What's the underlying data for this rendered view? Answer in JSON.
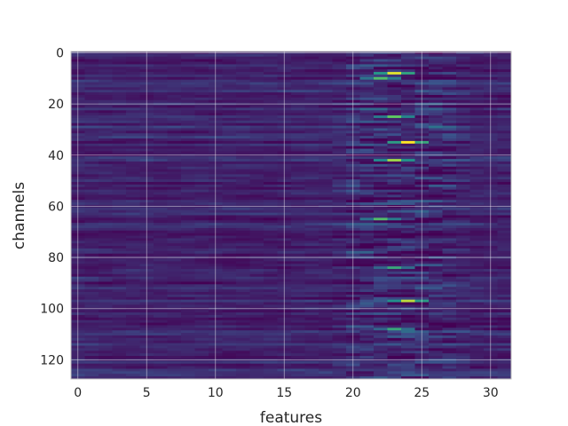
{
  "chart_data": {
    "type": "heatmap",
    "title": "",
    "xlabel": "features",
    "ylabel": "channels",
    "x_range": [
      -0.5,
      31.5
    ],
    "y_range": [
      127.5,
      -0.5
    ],
    "x_ticks": [
      0,
      5,
      10,
      15,
      20,
      25,
      30
    ],
    "y_ticks": [
      0,
      20,
      40,
      60,
      80,
      100,
      120
    ],
    "grid": true,
    "colormap": "viridis",
    "colormap_stops": [
      "#440154",
      "#3b528b",
      "#21918c",
      "#5ec962",
      "#fde725"
    ],
    "n_rows": 128,
    "n_cols": 32,
    "hotspots": [
      {
        "feature": 23,
        "channel": 8,
        "value": 0.95
      },
      {
        "feature": 24,
        "channel": 35,
        "value": 1.0
      },
      {
        "feature": 23,
        "channel": 42,
        "value": 0.85
      },
      {
        "feature": 23,
        "channel": 25,
        "value": 0.75
      },
      {
        "feature": 24,
        "channel": 97,
        "value": 0.9
      },
      {
        "feature": 22,
        "channel": 65,
        "value": 0.7
      },
      {
        "feature": 22,
        "channel": 10,
        "value": 0.7
      },
      {
        "feature": 23,
        "channel": 84,
        "value": 0.6
      },
      {
        "feature": 23,
        "channel": 108,
        "value": 0.6
      }
    ]
  }
}
